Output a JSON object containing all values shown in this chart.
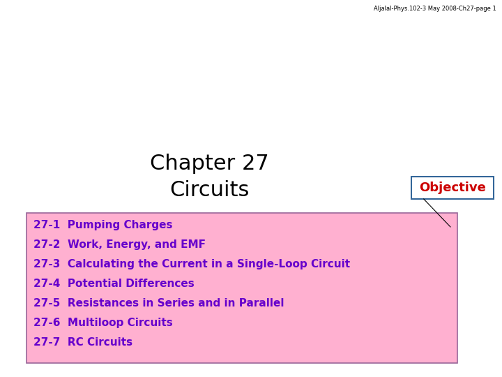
{
  "header_text": "Aljalal-Phys.102-3 May 2008-Ch27-page 1",
  "title_line1": "Chapter 27",
  "title_line2": "Circuits",
  "objective_text": "Objective",
  "items": [
    "27-1  Pumping Charges",
    "27-2  Work, Energy, and EMF",
    "27-3  Calculating the Current in a Single-Loop Circuit",
    "27-4  Potential Differences",
    "27-5  Resistances in Series and in Parallel",
    "27-6  Multiloop Circuits",
    "27-7  RC Circuits"
  ],
  "bg_color": "#ffffff",
  "title_color": "#000000",
  "header_color": "#000000",
  "items_color": "#6600cc",
  "items_bg_color": "#ffb0d0",
  "objective_text_color": "#cc0000",
  "objective_box_color": "#336699",
  "items_box_border_color": "#996699",
  "title_fontsize": 22,
  "header_fontsize": 6,
  "items_fontsize": 11,
  "objective_fontsize": 13
}
